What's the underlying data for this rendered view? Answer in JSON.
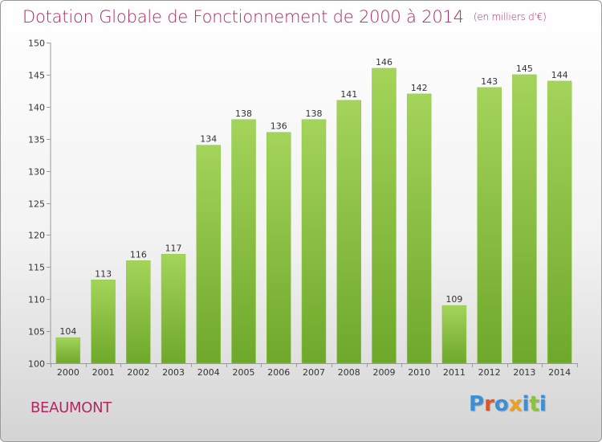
{
  "header": {
    "title": "Dotation Globale de Fonctionnement de 2000 à 2014",
    "subtitle": "(en milliers d'€)"
  },
  "footer": {
    "commune": "BEAUMONT",
    "logo": "Proxiti"
  },
  "colors": {
    "title": "#b0285e",
    "bar_light": "#a4d45a",
    "bar_dark": "#6ea82a",
    "logo_letters": [
      "#3a8fd6",
      "#e8502a",
      "#3a8fd6",
      "#f0a020",
      "#3a8fd6",
      "#8ac43a",
      "#3a8fd6"
    ]
  },
  "chart_data": {
    "type": "bar",
    "title": "Dotation Globale de Fonctionnement de 2000 à 2014",
    "subtitle": "(en milliers d'€)",
    "xlabel": "",
    "ylabel": "",
    "categories": [
      "2000",
      "2001",
      "2002",
      "2003",
      "2004",
      "2005",
      "2006",
      "2007",
      "2008",
      "2009",
      "2010",
      "2011",
      "2012",
      "2013",
      "2014"
    ],
    "values": [
      104,
      113,
      116,
      117,
      134,
      138,
      136,
      138,
      141,
      146,
      142,
      109,
      143,
      145,
      144
    ],
    "ylim": [
      100,
      150
    ],
    "yticks": [
      100,
      105,
      110,
      115,
      120,
      125,
      130,
      135,
      140,
      145,
      150
    ],
    "grid": false,
    "data_labels": true
  }
}
